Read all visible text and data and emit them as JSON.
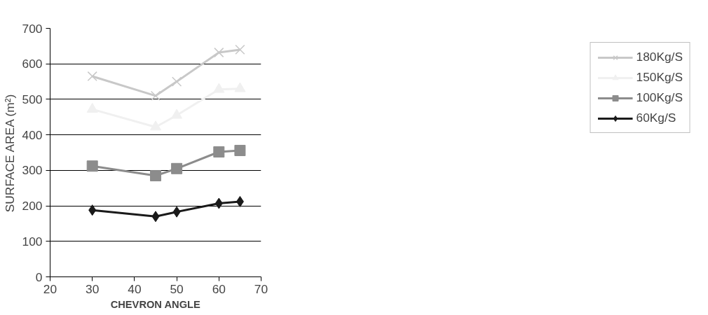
{
  "chart_data": {
    "type": "line",
    "xlabel": "CHEVRON ANGLE",
    "ylabel": "SURFACE AREA (m²)",
    "x": [
      30,
      45,
      50,
      60,
      65
    ],
    "series": [
      {
        "name": "180Kg/S",
        "color": "#c8c8c8",
        "marker": "cross",
        "values": [
          565,
          510,
          550,
          632,
          640
        ]
      },
      {
        "name": "150Kg/S",
        "color": "#f0f0f0",
        "marker": "triangle",
        "values": [
          472,
          422,
          455,
          528,
          530
        ]
      },
      {
        "name": "100Kg/S",
        "color": "#8c8c8c",
        "marker": "square",
        "values": [
          312,
          285,
          305,
          352,
          356
        ]
      },
      {
        "name": "60Kg/S",
        "color": "#1a1a1a",
        "marker": "diamond",
        "values": [
          188,
          170,
          183,
          207,
          212
        ]
      }
    ],
    "xlim": [
      20,
      70
    ],
    "xticks": [
      20,
      30,
      40,
      50,
      60,
      70
    ],
    "ylim": [
      0,
      700
    ],
    "yticks": [
      0,
      100,
      200,
      300,
      400,
      500,
      600,
      700
    ],
    "grid": "y",
    "legend": "right",
    "line_style": "solid"
  }
}
